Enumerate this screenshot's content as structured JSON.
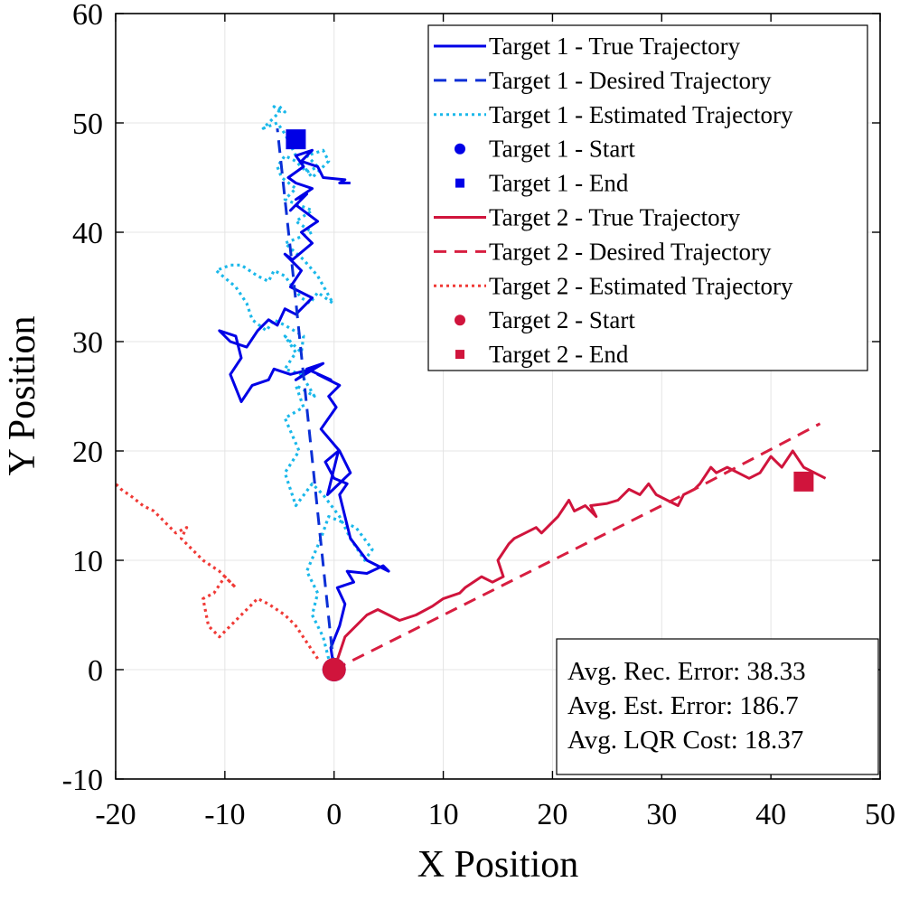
{
  "chart_data": {
    "type": "line",
    "xlabel": "X Position",
    "ylabel": "Y Position",
    "xlim": [
      -20,
      50
    ],
    "ylim": [
      -10,
      60
    ],
    "xticks": [
      -20,
      -10,
      0,
      10,
      20,
      30,
      40,
      50
    ],
    "yticks": [
      -10,
      0,
      10,
      20,
      30,
      40,
      50,
      60
    ],
    "grid": true,
    "legend_position": "top-right",
    "colors": {
      "target1_true": "#0000e6",
      "target1_desired": "#0a2fd6",
      "target1_estimated": "#1ab8ea",
      "target2_true": "#d0143c",
      "target2_desired": "#d81e40",
      "target2_estimated": "#f03a36"
    },
    "legend": [
      {
        "label": "Target 1 - True Trajectory",
        "style": "solid",
        "color": "#0000e6"
      },
      {
        "label": "Target 1 - Desired Trajectory",
        "style": "dashed",
        "color": "#0a2fd6"
      },
      {
        "label": "Target 1 - Estimated Trajectory",
        "style": "dotted",
        "color": "#1ab8ea"
      },
      {
        "label": "Target 1 - Start",
        "style": "circle",
        "color": "#0000e6"
      },
      {
        "label": "Target 1 - End",
        "style": "square",
        "color": "#0000e6"
      },
      {
        "label": "Target 2 - True Trajectory",
        "style": "solid",
        "color": "#d0143c"
      },
      {
        "label": "Target 2 - Desired Trajectory",
        "style": "dashed",
        "color": "#d81e40"
      },
      {
        "label": "Target 2 - Estimated Trajectory",
        "style": "dotted",
        "color": "#f03a36"
      },
      {
        "label": "Target 2 - Start",
        "style": "circle",
        "color": "#d0143c"
      },
      {
        "label": "Target 2 - End",
        "style": "square",
        "color": "#d0143c"
      }
    ],
    "series": [
      {
        "name": "Target 1 - True Trajectory",
        "style": "solid",
        "color": "#0000e6",
        "x": [
          0,
          -0.3,
          0.5,
          1.0,
          0.3,
          1.8,
          1.2,
          3.0,
          4.5,
          5.0,
          3.0,
          1.5,
          1.0,
          0.5,
          1.2,
          0,
          -0.8,
          0.4,
          -0.6,
          1.5,
          0.5,
          -1.2,
          0.2,
          -0.5,
          0.5,
          -1.5,
          -0.3,
          -2.5,
          -1.0,
          -3.5,
          -2.0,
          -4.0,
          -5.5,
          -6.0,
          -7.5,
          -8.5,
          -9.5,
          -8.5,
          -9.0,
          -10.5,
          -9.5,
          -8.0,
          -7.0,
          -6.0,
          -5.2,
          -4.5,
          -3.5,
          -2.0,
          -4.0,
          -3.0,
          -4.5,
          -3.8,
          -2.0,
          -3.0,
          -1.5,
          -3.5,
          -4.0,
          -2.5,
          -3.5,
          -2.0,
          -3.5,
          -4.2,
          -2.8,
          -3.5,
          -2.0,
          -3.0,
          -1.5,
          -1.0,
          1.0,
          0.5,
          1.5
        ],
        "y": [
          0,
          2,
          4,
          6,
          7.5,
          8,
          9,
          8.8,
          9.5,
          9,
          10,
          12,
          14,
          16,
          17,
          17.5,
          19,
          20,
          16,
          18,
          20,
          22,
          24,
          25,
          26,
          27,
          26.5,
          27.5,
          28,
          26.5,
          27.5,
          27,
          27.5,
          26.5,
          26,
          24.5,
          27,
          28.5,
          30.5,
          31,
          30,
          29.5,
          31,
          32,
          31.5,
          33,
          32.5,
          34,
          35,
          36.5,
          38,
          37.5,
          39,
          40,
          41,
          42.5,
          42,
          43.5,
          43,
          44,
          44.5,
          45,
          46,
          47,
          47.5,
          46.5,
          46,
          45,
          44.8,
          44.5,
          44.5
        ]
      },
      {
        "name": "Target 1 - Desired Trajectory",
        "style": "dashed",
        "color": "#0a2fd6",
        "x": [
          0,
          -1.3,
          -2.6,
          -3.9,
          -5.2
        ],
        "y": [
          0,
          12.5,
          25,
          37.5,
          49.5
        ]
      },
      {
        "name": "Target 1 - Estimated Trajectory",
        "style": "dotted",
        "color": "#1ab8ea",
        "x": [
          -0.5,
          -1.0,
          -2.0,
          -1.5,
          -2.5,
          -1.2,
          -0.5,
          2.0,
          3.5,
          2.8,
          1.5,
          0.5,
          -1.0,
          -2.0,
          -3.5,
          -4.5,
          -3.2,
          -4.5,
          -2.8,
          -3.5,
          -1.8,
          -3.0,
          -4.5,
          -3.5,
          -4.5,
          -3.0,
          -2.8,
          -4.5,
          -5.5,
          -6.2,
          -7.5,
          -8.0,
          -9.0,
          -10.8,
          -9.5,
          -8.5,
          -7.0,
          -6.0,
          -5.5,
          -4.5,
          -3.8,
          -3.0,
          -2.2,
          -1.5,
          -0.1,
          -1.5,
          -2.8,
          -4.5,
          -2.0,
          -3.5,
          -2.0,
          -4.5,
          -3.5,
          -4.8,
          -5.2,
          -4.5,
          -3.5,
          -2.5,
          -1.5,
          -2.5,
          -1.0,
          -0.5,
          -2.0,
          -3.5,
          -4.5,
          -5.2,
          -6.5,
          -5.0,
          -5.5,
          -4.5,
          -5.0
        ],
        "y": [
          1,
          3,
          5,
          7,
          9,
          12,
          14,
          13,
          11,
          10,
          12,
          14,
          16,
          17,
          15,
          18,
          20,
          23,
          24,
          26,
          25,
          27,
          27.5,
          29,
          30.5,
          29,
          30.5,
          31.5,
          32,
          31,
          32,
          33.5,
          35,
          36.5,
          37,
          37,
          36,
          35.5,
          36.5,
          36,
          35,
          34,
          33.5,
          34.5,
          33.5,
          36,
          37.5,
          39,
          40,
          41,
          42,
          43,
          44,
          45,
          46,
          47,
          46.5,
          45.5,
          46,
          47,
          47.5,
          46.5,
          45,
          47,
          49,
          50,
          49.5,
          51,
          51.5,
          51,
          51.5
        ]
      },
      {
        "name": "Target 2 - True Trajectory",
        "style": "solid",
        "color": "#d0143c",
        "x": [
          0,
          1,
          3,
          4,
          6,
          7.5,
          9,
          10,
          11.5,
          12,
          13.5,
          14.5,
          15.5,
          15,
          16,
          16.5,
          17.5,
          18.5,
          19,
          20.5,
          21.5,
          22,
          23,
          24,
          23.5,
          25,
          26,
          27,
          28,
          28.8,
          29.5,
          30.5,
          31.5,
          32,
          33,
          33.5,
          34.5,
          35,
          36,
          37,
          38,
          39,
          40,
          41,
          42,
          43,
          44,
          45
        ],
        "y": [
          0,
          3,
          5,
          5.5,
          4.5,
          5,
          5.8,
          6.5,
          7,
          7.5,
          8.5,
          8,
          8.5,
          10,
          11.5,
          12,
          12.5,
          13,
          12.5,
          14,
          15.5,
          14.5,
          15,
          14,
          15,
          15.2,
          15.5,
          16.5,
          16,
          17,
          16,
          15.5,
          15,
          16,
          16.5,
          17,
          18.5,
          18,
          18.5,
          18,
          17.5,
          18,
          19.5,
          18.5,
          20,
          18.5,
          18,
          17.5
        ]
      },
      {
        "name": "Target 2 - Desired Trajectory",
        "style": "dashed",
        "color": "#d81e40",
        "x": [
          0,
          11,
          22,
          33,
          44.5
        ],
        "y": [
          0,
          5.5,
          11,
          16.5,
          22.5
        ]
      },
      {
        "name": "Target 2 - Estimated Trajectory",
        "style": "dotted",
        "color": "#f03a36",
        "x": [
          -1.5,
          -2.5,
          -3.5,
          -4.5,
          -6,
          -7,
          -8,
          -9.5,
          -10.5,
          -11.5,
          -12,
          -11,
          -10,
          -9,
          -10.5,
          -12,
          -13,
          -14,
          -13.5,
          -14.5,
          -15.5,
          -16.5,
          -17.5,
          -18.5,
          -19.5,
          -20
        ],
        "y": [
          1,
          2.5,
          4,
          5,
          6,
          6.5,
          5.5,
          4,
          3,
          4,
          6.5,
          7,
          8.5,
          7.5,
          9,
          10,
          11,
          12,
          13,
          12.5,
          13.5,
          14.5,
          15,
          15.8,
          16.5,
          17
        ]
      },
      {
        "name": "Target 1 - Start",
        "style": "circle",
        "color": "#0000e6",
        "x": [
          0
        ],
        "y": [
          0
        ]
      },
      {
        "name": "Target 1 - End",
        "style": "square",
        "color": "#0000e6",
        "x": [
          -3.5
        ],
        "y": [
          48.5
        ]
      },
      {
        "name": "Target 2 - Start",
        "style": "circle",
        "color": "#d0143c",
        "x": [
          0
        ],
        "y": [
          0
        ]
      },
      {
        "name": "Target 2 - End",
        "style": "square",
        "color": "#d0143c",
        "x": [
          43
        ],
        "y": [
          17.2
        ]
      }
    ]
  },
  "stats": {
    "rec_error": "Avg. Rec. Error: 38.33",
    "est_error": "Avg. Est. Error: 186.7",
    "lqr_cost": "Avg. LQR Cost: 18.37"
  }
}
